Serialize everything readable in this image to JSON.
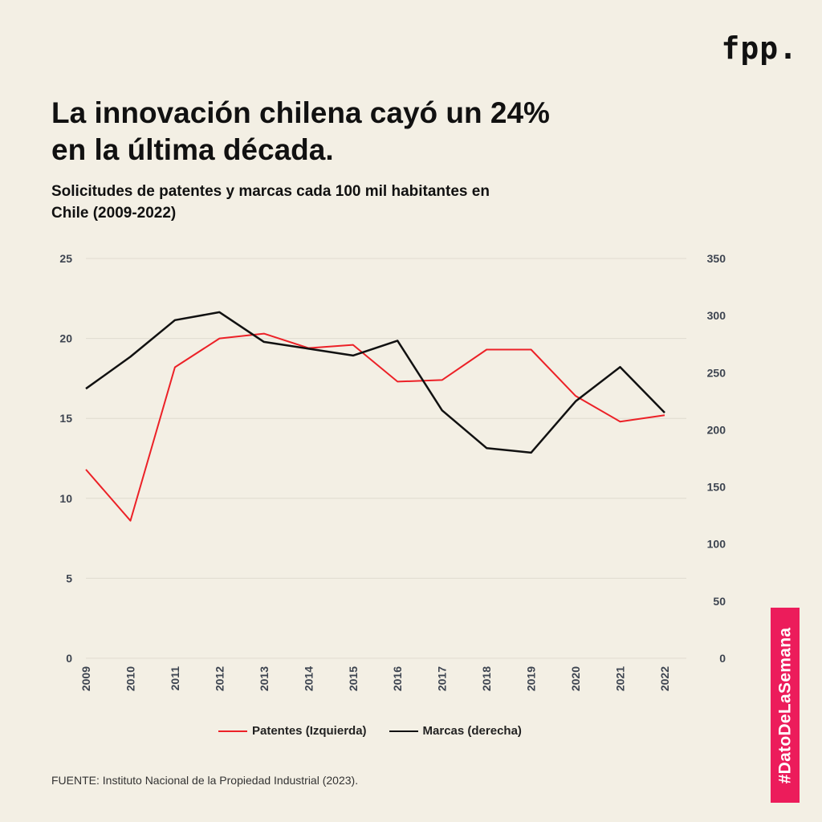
{
  "logo": "fpp.",
  "title_line1": "La innovación chilena cayó un 24%",
  "title_line2": "en la última década.",
  "subtitle_line1": "Solicitudes de patentes y marcas cada 100 mil habitantes en",
  "subtitle_line2": "Chile (2009-2022)",
  "source": "FUENTE: Instituto Nacional de la Propiedad Industrial (2023).",
  "hashtag": "#DatoDeLaSemana",
  "colors": {
    "patentes": "#ec2127",
    "marcas": "#111111",
    "grid": "#e0dbcf",
    "axis_text": "#3d4450",
    "background": "#f3efe4",
    "hashtag_bg": "#ec1c5b"
  },
  "chart_data": {
    "type": "line",
    "title": "La innovación chilena cayó un 24% en la última década.",
    "subtitle": "Solicitudes de patentes y marcas cada 100 mil habitantes en Chile (2009-2022)",
    "x": [
      "2009",
      "2010",
      "2011",
      "2012",
      "2013",
      "2014",
      "2015",
      "2016",
      "2017",
      "2018",
      "2019",
      "2020",
      "2021",
      "2022"
    ],
    "left_axis": {
      "label": "Patentes",
      "ylim": [
        0,
        25
      ],
      "ticks": [
        0,
        5,
        10,
        15,
        20,
        25
      ]
    },
    "right_axis": {
      "label": "Marcas",
      "ylim": [
        0,
        350
      ],
      "ticks": [
        0,
        50,
        100,
        150,
        200,
        250,
        300,
        350
      ]
    },
    "series": [
      {
        "name": "Patentes (Izquierda)",
        "axis": "left",
        "values": [
          11.8,
          8.6,
          18.2,
          20.0,
          20.3,
          19.4,
          19.6,
          17.3,
          17.4,
          19.3,
          19.3,
          16.4,
          14.8,
          15.2
        ]
      },
      {
        "name": "Marcas (derecha)",
        "axis": "right",
        "values": [
          236,
          264,
          296,
          303,
          277,
          271,
          265,
          278,
          217,
          184,
          180,
          225,
          255,
          215
        ]
      }
    ],
    "legend": "bottom-center",
    "grid": true
  }
}
